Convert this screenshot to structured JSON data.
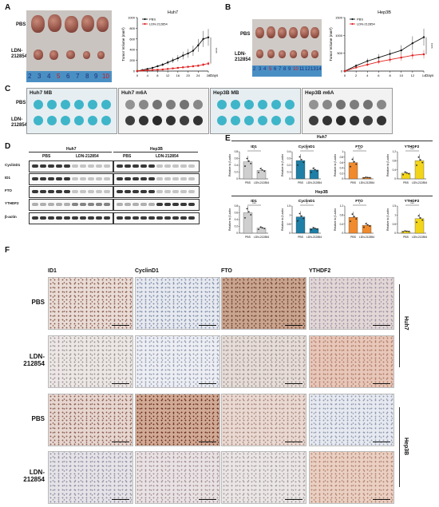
{
  "panels": {
    "A": "A",
    "B": "B",
    "C": "C",
    "D": "D",
    "E": "E",
    "F": "F"
  },
  "panelA": {
    "row1": "PBS",
    "row2_line1": "LDN-",
    "row2_line2": "212854",
    "ruler": [
      "2",
      "3",
      "4",
      "5",
      "6",
      "7",
      "8",
      "9",
      "10"
    ],
    "tumor_color": "#9a5546"
  },
  "panelB": {
    "row1": "PBS",
    "row2_line1": "LDN-",
    "row2_line2": "212854",
    "ruler": [
      "2",
      "3",
      "4",
      "5",
      "6",
      "7",
      "8",
      "9",
      "10",
      "11",
      "12",
      "13",
      "14"
    ]
  },
  "panelC": {
    "titles": [
      "Huh7 MB",
      "Huh7 m6A",
      "Hep3B MB",
      "Hep3B m6A"
    ],
    "row1": "PBS",
    "row2_line1": "LDN-",
    "row2_line2": "212854",
    "mb_color": "#3fb5c9",
    "m6a_color": "#2a2a2a"
  },
  "panelD": {
    "cell_lines": [
      "Huh7",
      "Hep3B"
    ],
    "groups": [
      "PBS",
      "LDN-212854",
      "PBS",
      "LDN-212854"
    ],
    "proteins": [
      "CyclinD1",
      "ID1",
      "FTO",
      "YTHDF2",
      "β-actin"
    ]
  },
  "panelE": {
    "row1_header": "Huh7",
    "row2_header": "Hep3B",
    "ylabel": "Relative to β-actin",
    "xcats": [
      "PBS",
      "LDN-212854"
    ],
    "sig": {
      "r1": [
        "*",
        "**",
        "***",
        "***"
      ],
      "r2": [
        "***",
        "*",
        "*",
        "***"
      ]
    }
  },
  "panelF": {
    "columns": [
      "ID1",
      "CyclinD1",
      "FTO",
      "YTHDF2"
    ],
    "rows": [
      {
        "l1": "PBS",
        "l2": ""
      },
      {
        "l1": "LDN-",
        "l2": "212854"
      },
      {
        "l1": "PBS",
        "l2": ""
      },
      {
        "l1": "LDN-",
        "l2": "212854"
      }
    ],
    "side": [
      "Huh7",
      "Hep3B"
    ]
  },
  "chart_data": [
    {
      "type": "line",
      "title": "Huh7",
      "xlabel": "Days",
      "ylabel": "Tumor Volume (mm³)",
      "x": [
        0,
        2,
        4,
        6,
        8,
        10,
        12,
        14,
        16,
        18,
        20,
        22,
        24,
        26,
        28
      ],
      "x_ticks": [
        0,
        4,
        8,
        12,
        16,
        20,
        24,
        28
      ],
      "ylim": [
        0,
        1000
      ],
      "y_ticks": [
        0,
        200,
        400,
        600,
        800,
        1000
      ],
      "series": [
        {
          "name": "PBS",
          "color": "#111111",
          "values": [
            0,
            20,
            40,
            60,
            90,
            120,
            160,
            200,
            240,
            290,
            330,
            380,
            480,
            600,
            630
          ]
        },
        {
          "name": "LDN-212854",
          "color": "#e02020",
          "values": [
            0,
            10,
            15,
            20,
            25,
            30,
            40,
            50,
            60,
            70,
            80,
            90,
            100,
            120,
            140
          ]
        }
      ],
      "annotation": "****"
    },
    {
      "type": "line",
      "title": "Hep3B",
      "xlabel": "Days",
      "ylabel": "Tumor Volume (mm³)",
      "x": [
        0,
        2,
        4,
        6,
        8,
        10,
        12,
        14
      ],
      "x_ticks": [
        0,
        2,
        4,
        6,
        8,
        10,
        12,
        14
      ],
      "ylim": [
        0,
        1500
      ],
      "y_ticks": [
        0,
        500,
        1000,
        1500
      ],
      "series": [
        {
          "name": "PBS",
          "color": "#111111",
          "values": [
            0,
            150,
            280,
            380,
            480,
            580,
            780,
            950
          ]
        },
        {
          "name": "LDN-212854",
          "color": "#e02020",
          "values": [
            0,
            100,
            180,
            260,
            320,
            380,
            440,
            470
          ]
        }
      ],
      "annotation": "****"
    },
    {
      "type": "bar",
      "title": "ID1",
      "group": "Huh7",
      "categories": [
        "PBS",
        "LDN-212854"
      ],
      "values": [
        0.5,
        0.25
      ],
      "ylim": [
        0,
        0.8
      ],
      "y_ticks": [
        0,
        0.2,
        0.4,
        0.6,
        0.8
      ],
      "colors": [
        "#cfcfcf",
        "#cfcfcf"
      ]
    },
    {
      "type": "bar",
      "title": "CyclinD1",
      "group": "Huh7",
      "categories": [
        "PBS",
        "LDN-212854"
      ],
      "values": [
        0.27,
        0.13
      ],
      "ylim": [
        0,
        0.4
      ],
      "y_ticks": [
        0,
        0.1,
        0.2,
        0.3,
        0.4
      ],
      "colors": [
        "#1f7fa6",
        "#1f7fa6"
      ]
    },
    {
      "type": "bar",
      "title": "FTO",
      "group": "Huh7",
      "categories": [
        "PBS",
        "LDN-212854"
      ],
      "values": [
        0.6,
        0.05
      ],
      "ylim": [
        0,
        1.0
      ],
      "y_ticks": [
        0,
        0.2,
        0.4,
        0.6,
        0.8,
        1.0
      ],
      "colors": [
        "#f08a2c",
        "#f08a2c"
      ]
    },
    {
      "type": "bar",
      "title": "YTHDF2",
      "group": "Huh7",
      "categories": [
        "PBS",
        "LDN-212854"
      ],
      "values": [
        0.25,
        0.8
      ],
      "ylim": [
        0,
        1.2
      ],
      "y_ticks": [
        0,
        0.4,
        0.8,
        1.2
      ],
      "colors": [
        "#f2d51a",
        "#f2d51a"
      ]
    },
    {
      "type": "bar",
      "title": "ID1",
      "group": "Hep3B",
      "categories": [
        "PBS",
        "LDN-212854"
      ],
      "values": [
        0.6,
        0.15
      ],
      "ylim": [
        0,
        0.8
      ],
      "y_ticks": [
        0,
        0.2,
        0.4,
        0.6,
        0.8
      ],
      "colors": [
        "#cfcfcf",
        "#cfcfcf"
      ]
    },
    {
      "type": "bar",
      "title": "CyclinD1",
      "group": "Hep3B",
      "categories": [
        "PBS",
        "LDN-212854"
      ],
      "values": [
        0.9,
        0.25
      ],
      "ylim": [
        0,
        1.5
      ],
      "y_ticks": [
        0,
        0.5,
        1.0,
        1.5
      ],
      "colors": [
        "#1f7fa6",
        "#1f7fa6"
      ]
    },
    {
      "type": "bar",
      "title": "FTO",
      "group": "Hep3B",
      "categories": [
        "PBS",
        "LDN-212854"
      ],
      "values": [
        0.7,
        0.35
      ],
      "ylim": [
        0,
        1.2
      ],
      "y_ticks": [
        0,
        0.4,
        0.8,
        1.2
      ],
      "colors": [
        "#f08a2c",
        "#f08a2c"
      ]
    },
    {
      "type": "bar",
      "title": "YTHDF2",
      "group": "Hep3B",
      "categories": [
        "PBS",
        "LDN-212854"
      ],
      "values": [
        0.1,
        0.8
      ],
      "ylim": [
        0,
        1.5
      ],
      "y_ticks": [
        0,
        0.5,
        1.0,
        1.5
      ],
      "colors": [
        "#f2d51a",
        "#f2d51a"
      ]
    }
  ]
}
